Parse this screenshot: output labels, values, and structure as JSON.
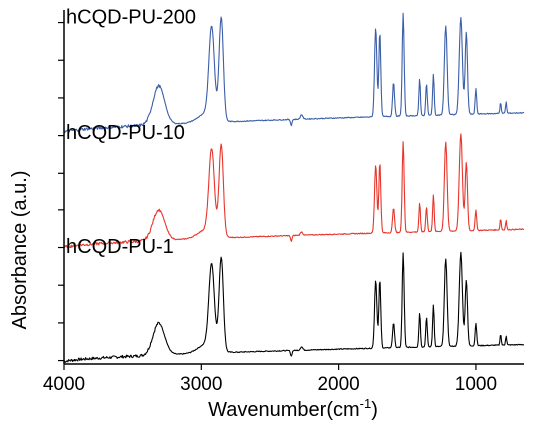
{
  "chart_data": {
    "type": "line",
    "title": "",
    "xlabel": "Wavenumber(cm",
    "xlabel_sup": "-1",
    "xlabel_close": ")",
    "ylabel": "Absorbance (a.u.)",
    "xlim": [
      4000,
      650
    ],
    "x_reversed": true,
    "x_ticks": [
      4000,
      3000,
      2000,
      1000
    ],
    "x_tick_labels": [
      "4000",
      "3000",
      "2000",
      "1000"
    ],
    "ylim": [
      0,
      3.1
    ],
    "y_tick_values": [
      0.03,
      0.36,
      0.69,
      1.02,
      1.35,
      1.67,
      2.0,
      2.33,
      2.66,
      2.99
    ],
    "grid": false,
    "legend": "inline-labels",
    "peak_positions_cm-1": [
      3310,
      2925,
      2855,
      2270,
      1730,
      1700,
      1600,
      1530,
      1410,
      1360,
      1310,
      1220,
      1110,
      1070,
      1000,
      820,
      780
    ],
    "series": [
      {
        "name": "hCQD-PU-1",
        "label": "hCQD-PU-1",
        "color": "#000000",
        "baseline_start": 0.02,
        "baseline_end": 0.17,
        "peak_heights": [
          0.28,
          0.72,
          0.82,
          0.03,
          0.6,
          0.6,
          0.22,
          0.83,
          0.3,
          0.26,
          0.37,
          0.77,
          0.82,
          0.58,
          0.2,
          0.1,
          0.08
        ]
      },
      {
        "name": "hCQD-PU-10",
        "label": "hCQD-PU-10",
        "color": "#e8352b",
        "baseline_start": 1.02,
        "baseline_end": 1.18,
        "peak_heights": [
          0.27,
          0.72,
          0.8,
          0.03,
          0.6,
          0.62,
          0.22,
          0.8,
          0.25,
          0.22,
          0.32,
          0.78,
          0.85,
          0.6,
          0.18,
          0.1,
          0.08
        ]
      },
      {
        "name": "hCQD-PU-200",
        "label": "hCQD-PU-200",
        "color": "#3b5ea8",
        "baseline_start": 2.03,
        "baseline_end": 2.2,
        "peak_heights": [
          0.34,
          0.78,
          0.9,
          0.04,
          0.78,
          0.74,
          0.3,
          0.9,
          0.32,
          0.28,
          0.36,
          0.78,
          0.85,
          0.72,
          0.22,
          0.1,
          0.1
        ]
      }
    ]
  }
}
